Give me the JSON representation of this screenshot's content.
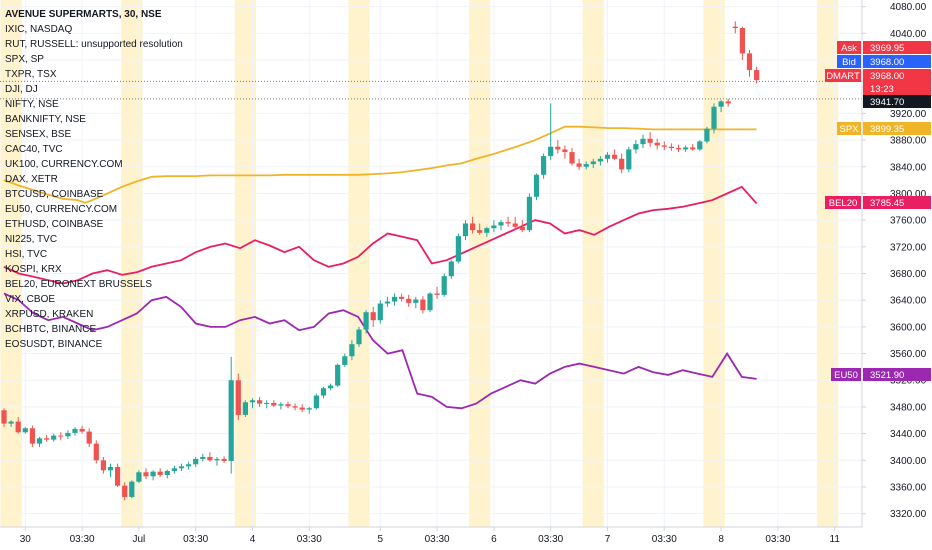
{
  "chart_data": {
    "type": "candlestick",
    "title": "AVENUE SUPERMARTS, 30, NSE",
    "symbol_list": [
      "AVENUE SUPERMARTS, 30, NSE",
      "IXIC, NASDAQ",
      "RUT, RUSSELL: unsupported resolution",
      "SPX, SP",
      "TXPR, TSX",
      "DJI, DJ",
      "NIFTY, NSE",
      "BANKNIFTY, NSE",
      "SENSEX, BSE",
      "CAC40, TVC",
      "UK100, CURRENCY.COM",
      "DAX, XETR",
      "BTCUSD, COINBASE",
      "EU50, CURRENCY.COM",
      "ETHUSD, COINBASE",
      "NI225, TVC",
      "HSI, TVC",
      "KOSPI, KRX",
      "BEL20, EURONEXT BRUSSELS",
      "VIX, CBOE",
      "XRPUSD, KRAKEN",
      "BCHBTC, BINANCE",
      "EOSUSDT, BINANCE"
    ],
    "ylim": [
      3300,
      4090
    ],
    "y_ticks": [
      3320,
      3360,
      3400,
      3440,
      3480,
      3520,
      3560,
      3600,
      3640,
      3680,
      3720,
      3760,
      3800,
      3840,
      3880,
      3920,
      3960,
      4000,
      4040,
      4080
    ],
    "x_ticks": [
      "30",
      "03:30",
      "Jul",
      "03:30",
      "4",
      "03:30",
      "5",
      "03:30",
      "6",
      "03:30",
      "7",
      "03:30",
      "8",
      "03:30",
      "11"
    ],
    "x_tick_index": [
      3,
      11,
      19,
      27,
      35,
      43,
      53,
      61,
      69,
      77,
      85,
      93,
      101,
      109,
      117
    ],
    "session_bands": [
      [
        0,
        2
      ],
      [
        17,
        19
      ],
      [
        33,
        35
      ],
      [
        49,
        51
      ],
      [
        66,
        68
      ],
      [
        82,
        84
      ],
      [
        99,
        101
      ],
      [
        115,
        117
      ]
    ],
    "candles": [
      [
        3475,
        3478,
        3450,
        3455
      ],
      [
        3455,
        3460,
        3450,
        3458
      ],
      [
        3458,
        3465,
        3440,
        3442
      ],
      [
        3442,
        3450,
        3440,
        3448
      ],
      [
        3448,
        3452,
        3420,
        3425
      ],
      [
        3425,
        3435,
        3420,
        3433
      ],
      [
        3433,
        3438,
        3428,
        3431
      ],
      [
        3431,
        3440,
        3428,
        3437
      ],
      [
        3437,
        3442,
        3430,
        3436
      ],
      [
        3436,
        3445,
        3432,
        3441
      ],
      [
        3441,
        3450,
        3437,
        3447
      ],
      [
        3447,
        3452,
        3440,
        3443
      ],
      [
        3443,
        3448,
        3420,
        3425
      ],
      [
        3425,
        3430,
        3395,
        3400
      ],
      [
        3400,
        3405,
        3380,
        3385
      ],
      [
        3385,
        3395,
        3375,
        3390
      ],
      [
        3390,
        3395,
        3360,
        3362
      ],
      [
        3362,
        3367,
        3340,
        3345
      ],
      [
        3345,
        3370,
        3343,
        3368
      ],
      [
        3368,
        3385,
        3366,
        3382
      ],
      [
        3382,
        3388,
        3372,
        3376
      ],
      [
        3376,
        3385,
        3370,
        3383
      ],
      [
        3383,
        3388,
        3375,
        3378
      ],
      [
        3378,
        3386,
        3373,
        3384
      ],
      [
        3384,
        3392,
        3380,
        3388
      ],
      [
        3388,
        3395,
        3384,
        3391
      ],
      [
        3391,
        3398,
        3386,
        3394
      ],
      [
        3394,
        3405,
        3390,
        3402
      ],
      [
        3402,
        3410,
        3398,
        3405
      ],
      [
        3405,
        3412,
        3398,
        3400
      ],
      [
        3400,
        3405,
        3392,
        3402
      ],
      [
        3402,
        3406,
        3396,
        3399
      ],
      [
        3399,
        3555,
        3380,
        3520
      ],
      [
        3520,
        3530,
        3460,
        3468
      ],
      [
        3468,
        3490,
        3465,
        3487
      ],
      [
        3487,
        3493,
        3478,
        3490
      ],
      [
        3490,
        3495,
        3480,
        3485
      ],
      [
        3485,
        3490,
        3478,
        3486
      ],
      [
        3486,
        3490,
        3480,
        3482
      ],
      [
        3482,
        3487,
        3476,
        3484
      ],
      [
        3484,
        3488,
        3478,
        3481
      ],
      [
        3481,
        3485,
        3475,
        3479
      ],
      [
        3479,
        3484,
        3472,
        3476
      ],
      [
        3476,
        3480,
        3470,
        3478
      ],
      [
        3478,
        3500,
        3476,
        3497
      ],
      [
        3497,
        3510,
        3493,
        3508
      ],
      [
        3508,
        3515,
        3505,
        3512
      ],
      [
        3512,
        3545,
        3510,
        3543
      ],
      [
        3543,
        3560,
        3540,
        3556
      ],
      [
        3556,
        3580,
        3550,
        3574
      ],
      [
        3574,
        3600,
        3570,
        3596
      ],
      [
        3596,
        3625,
        3590,
        3622
      ],
      [
        3622,
        3630,
        3600,
        3610
      ],
      [
        3610,
        3640,
        3605,
        3635
      ],
      [
        3635,
        3645,
        3630,
        3638
      ],
      [
        3638,
        3650,
        3632,
        3645
      ],
      [
        3645,
        3650,
        3638,
        3642
      ],
      [
        3642,
        3648,
        3630,
        3636
      ],
      [
        3636,
        3645,
        3628,
        3641
      ],
      [
        3641,
        3646,
        3620,
        3625
      ],
      [
        3625,
        3652,
        3622,
        3650
      ],
      [
        3650,
        3660,
        3642,
        3648
      ],
      [
        3648,
        3680,
        3645,
        3676
      ],
      [
        3676,
        3700,
        3672,
        3698
      ],
      [
        3698,
        3740,
        3695,
        3736
      ],
      [
        3736,
        3760,
        3730,
        3755
      ],
      [
        3755,
        3765,
        3740,
        3745
      ],
      [
        3745,
        3755,
        3738,
        3741
      ],
      [
        3741,
        3750,
        3735,
        3748
      ],
      [
        3748,
        3760,
        3742,
        3752
      ],
      [
        3752,
        3760,
        3745,
        3757
      ],
      [
        3757,
        3765,
        3750,
        3755
      ],
      [
        3755,
        3765,
        3745,
        3750
      ],
      [
        3750,
        3760,
        3742,
        3745
      ],
      [
        3745,
        3800,
        3742,
        3795
      ],
      [
        3795,
        3830,
        3790,
        3828
      ],
      [
        3828,
        3860,
        3822,
        3856
      ],
      [
        3856,
        3935,
        3850,
        3870
      ],
      [
        3870,
        3880,
        3860,
        3866
      ],
      [
        3866,
        3872,
        3852,
        3862
      ],
      [
        3862,
        3868,
        3842,
        3845
      ],
      [
        3845,
        3852,
        3835,
        3840
      ],
      [
        3840,
        3848,
        3836,
        3844
      ],
      [
        3844,
        3852,
        3838,
        3848
      ],
      [
        3848,
        3856,
        3842,
        3852
      ],
      [
        3852,
        3862,
        3846,
        3858
      ],
      [
        3858,
        3866,
        3850,
        3852
      ],
      [
        3852,
        3860,
        3830,
        3836
      ],
      [
        3836,
        3870,
        3832,
        3866
      ],
      [
        3866,
        3880,
        3860,
        3874
      ],
      [
        3874,
        3888,
        3868,
        3882
      ],
      [
        3882,
        3892,
        3870,
        3876
      ],
      [
        3876,
        3882,
        3866,
        3872
      ],
      [
        3872,
        3878,
        3865,
        3870
      ],
      [
        3870,
        3875,
        3864,
        3868
      ],
      [
        3868,
        3873,
        3862,
        3866
      ],
      [
        3866,
        3872,
        3862,
        3869
      ],
      [
        3869,
        3874,
        3864,
        3866
      ],
      [
        3866,
        3880,
        3864,
        3878
      ],
      [
        3878,
        3900,
        3875,
        3897
      ],
      [
        3897,
        3935,
        3890,
        3930
      ],
      [
        3930,
        3940,
        3922,
        3938
      ],
      [
        3938,
        3942,
        3930,
        3935
      ],
      [
        4050,
        4058,
        4040,
        4048
      ],
      [
        4048,
        4050,
        4000,
        4010
      ],
      [
        4010,
        4015,
        3975,
        3985
      ],
      [
        3985,
        3990,
        3965,
        3970
      ]
    ],
    "series": [
      {
        "color": "#f0b429",
        "values": [
          3820,
          3812,
          3805,
          3798,
          3792,
          3790,
          3786,
          3790,
          3800,
          3810,
          3818,
          3825,
          3826,
          3826,
          3826,
          3827,
          3827,
          3827,
          3827,
          3827,
          3828,
          3828,
          3828,
          3828,
          3828,
          3828,
          3829,
          3830,
          3832,
          3835,
          3838,
          3842,
          3845,
          3852,
          3858,
          3865,
          3872,
          3880,
          3890,
          3900,
          3900,
          3899,
          3898,
          3898,
          3897,
          3896,
          3896,
          3896,
          3896,
          3896,
          3896,
          3896,
          3896
        ],
        "x_index": [
          0,
          4,
          8,
          12,
          16,
          20,
          22,
          24,
          28,
          32,
          36,
          40,
          44,
          48,
          52,
          56,
          60,
          64,
          68,
          72,
          76,
          80,
          84,
          88,
          92,
          96,
          100,
          104,
          108,
          112,
          116,
          120,
          124,
          128,
          132,
          136,
          140,
          144,
          148,
          152,
          156,
          160,
          164,
          168,
          172,
          176,
          180,
          184,
          188,
          192,
          196,
          200,
          204
        ]
      },
      {
        "color": "#e91e63",
        "values": [
          3690,
          3680,
          3675,
          3670,
          3665,
          3670,
          3680,
          3685,
          3678,
          3682,
          3690,
          3695,
          3700,
          3712,
          3720,
          3725,
          3718,
          3730,
          3722,
          3712,
          3720,
          3700,
          3690,
          3695,
          3705,
          3725,
          3740,
          3735,
          3730,
          3695,
          3700,
          3710,
          3720,
          3730,
          3740,
          3750,
          3760,
          3755,
          3740,
          3745,
          3738,
          3750,
          3760,
          3770,
          3775,
          3777,
          3780,
          3785,
          3790,
          3800,
          3810,
          3785
        ]
      },
      {
        "color": "#9c27b0",
        "values": [
          3650,
          3640,
          3620,
          3610,
          3615,
          3605,
          3595,
          3600,
          3610,
          3620,
          3640,
          3645,
          3630,
          3605,
          3600,
          3600,
          3610,
          3615,
          3605,
          3610,
          3595,
          3600,
          3620,
          3625,
          3615,
          3580,
          3560,
          3565,
          3500,
          3495,
          3480,
          3478,
          3485,
          3500,
          3510,
          3520,
          3515,
          3530,
          3540,
          3545,
          3540,
          3535,
          3530,
          3540,
          3532,
          3528,
          3535,
          3530,
          3525,
          3560,
          3525,
          3522
        ]
      }
    ],
    "right_labels": [
      {
        "label": "",
        "value": "3969.95",
        "tag": "Ask",
        "price": 3969.95,
        "color": "#f23645"
      },
      {
        "label": "",
        "value": "3968.00",
        "tag": "Bid",
        "price": 3968.0,
        "color": "#2962ff"
      },
      {
        "label": "",
        "value": "3968.00",
        "tag": "DMART",
        "price": 3968.0,
        "color": "#f23645"
      },
      {
        "label": "",
        "value": "13:23",
        "tag": "",
        "price": 3956.5,
        "color": "#f23645"
      },
      {
        "label": "",
        "value": "3941.70",
        "tag": "",
        "price": 3941.7,
        "color": "#131722"
      },
      {
        "label": "",
        "value": "3899.35",
        "tag": "SPX",
        "price": 3899.35,
        "color": "#f0b429"
      },
      {
        "label": "",
        "value": "3785.45",
        "tag": "BEL20",
        "price": 3785.45,
        "color": "#e91e63"
      },
      {
        "label": "",
        "value": "3521.90",
        "tag": "EU50",
        "price": 3521.9,
        "color": "#9c27b0"
      }
    ],
    "candle_up_color": "#26a69a",
    "candle_down_color": "#ef5350",
    "band_color": "#fff3cd"
  }
}
